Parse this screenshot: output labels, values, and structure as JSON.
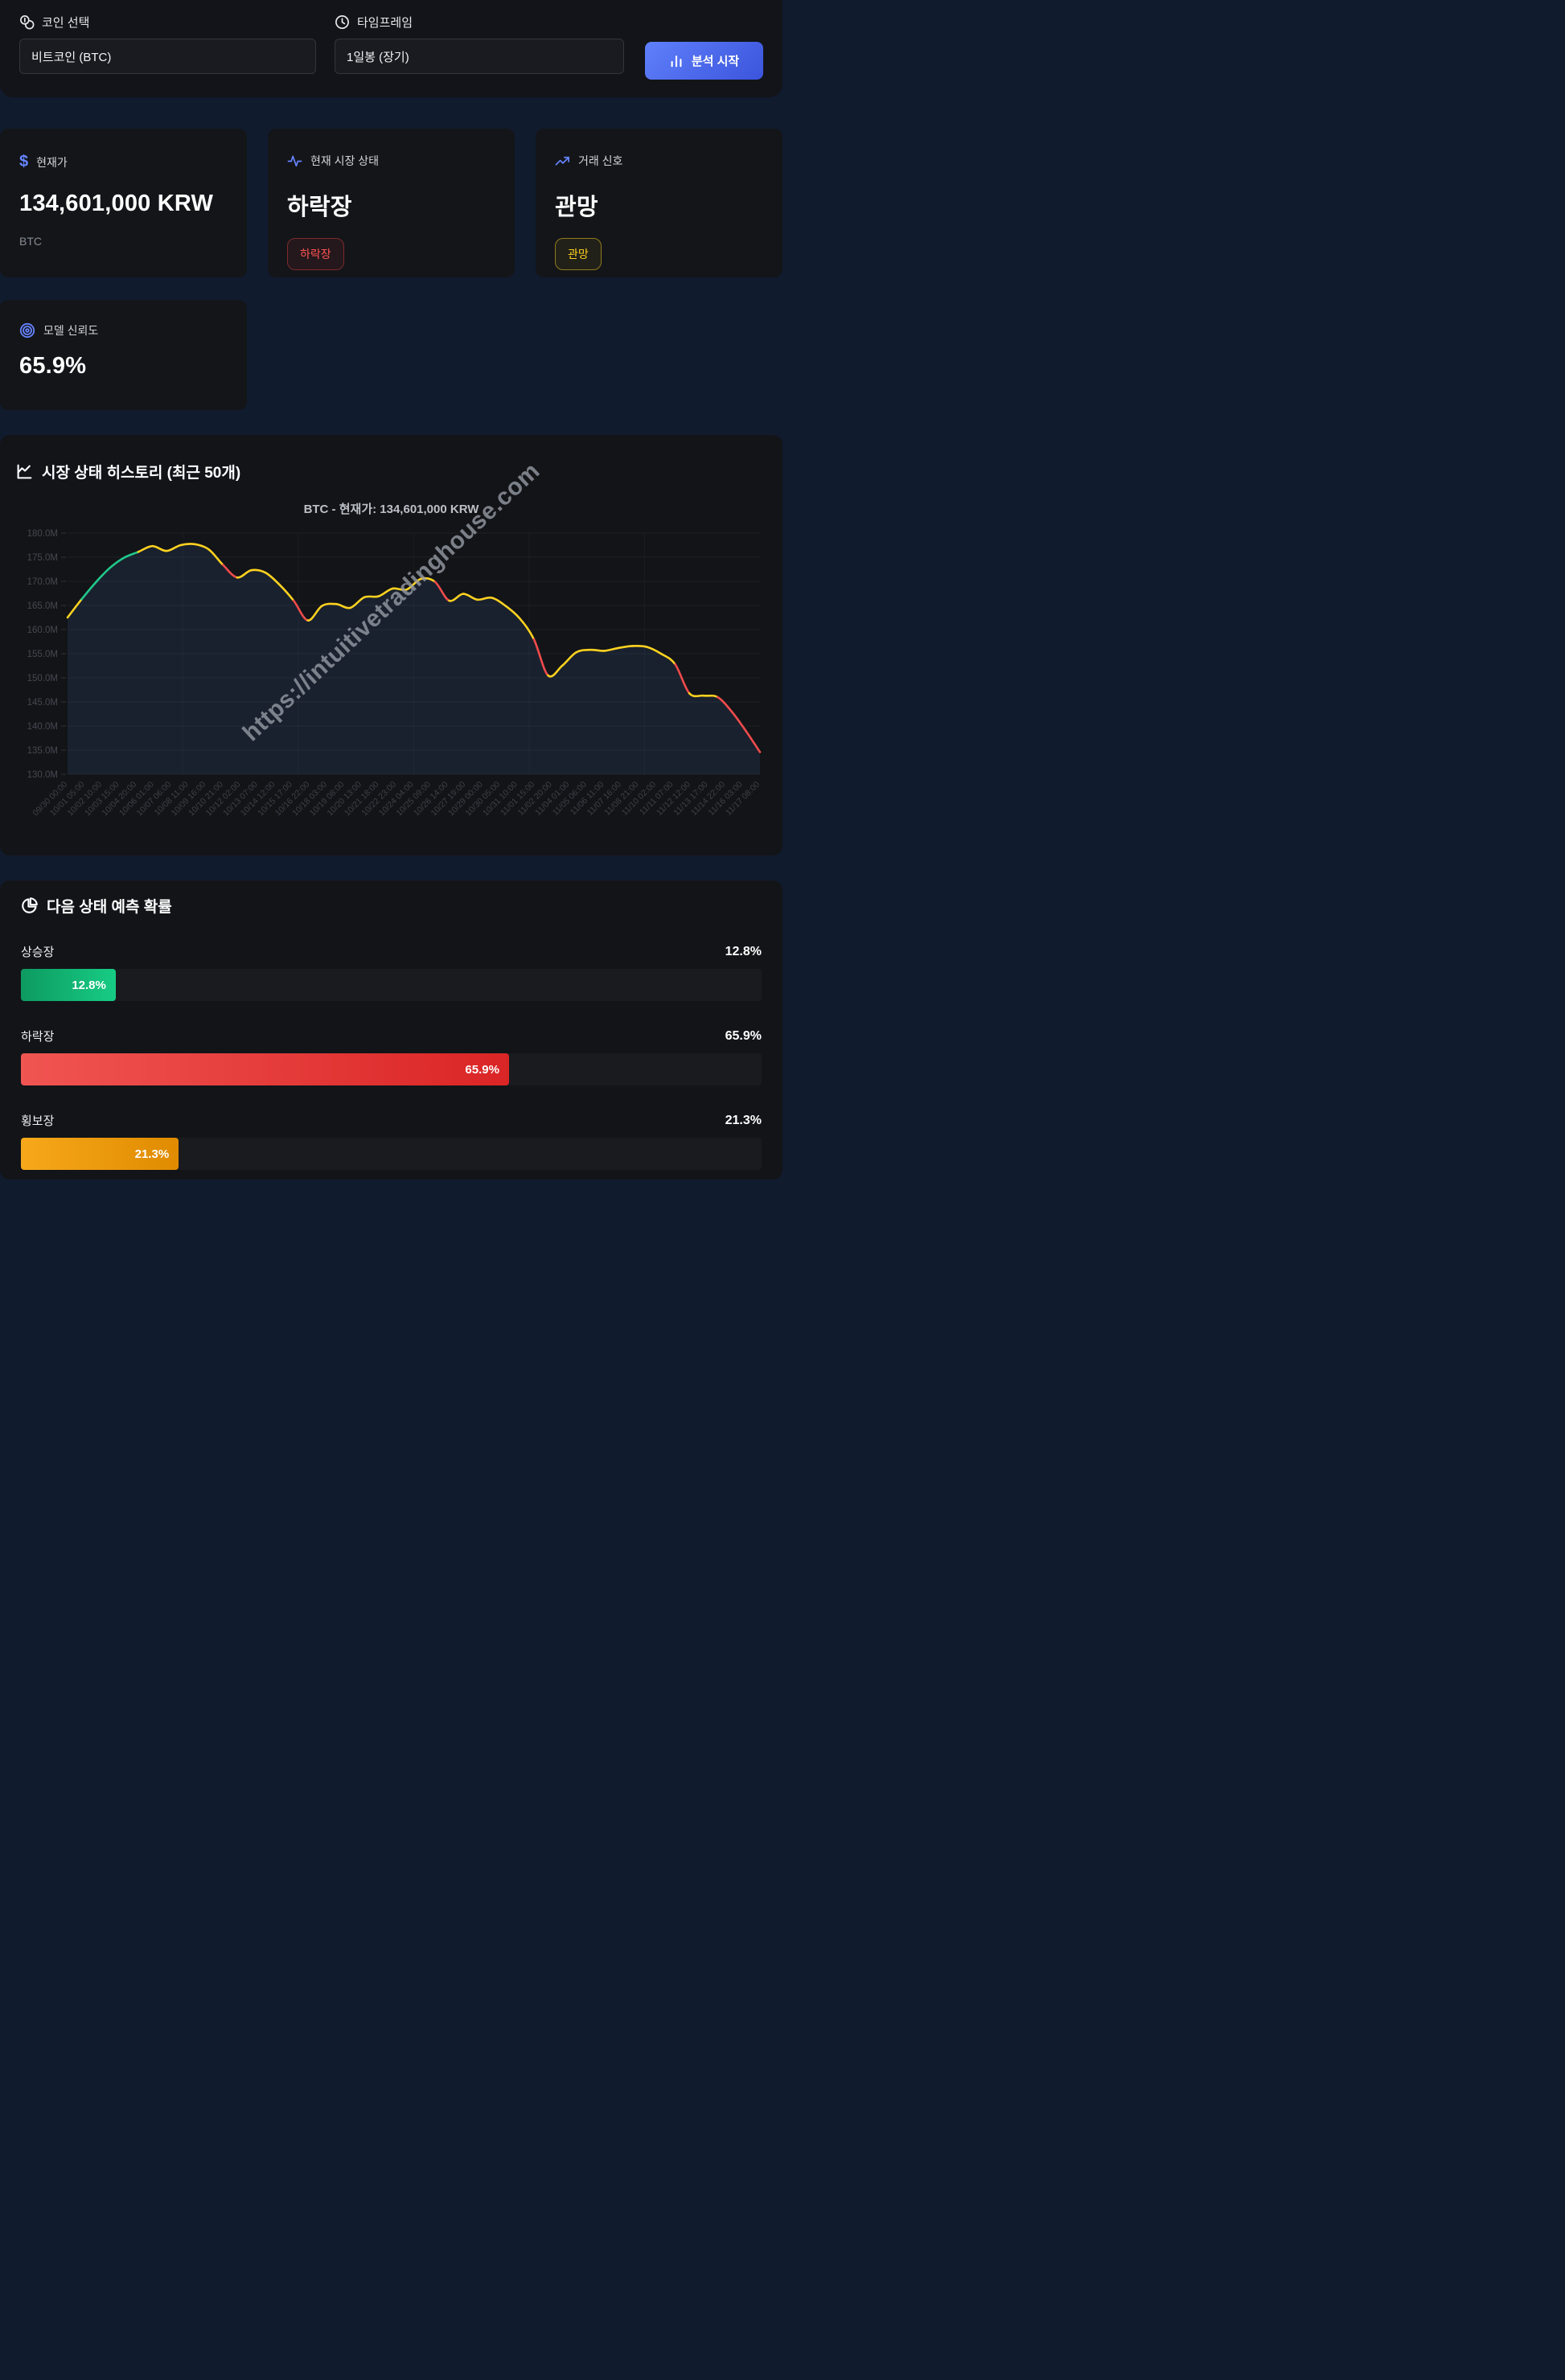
{
  "header": {
    "coin_label": "코인 선택",
    "coin_value": "비트코인 (BTC)",
    "timeframe_label": "타임프레임",
    "timeframe_value": "1일봉 (장기)",
    "analyze_button": "분석 시작"
  },
  "cards": {
    "price": {
      "label": "현재가",
      "value": "134,601,000 KRW",
      "sub": "BTC"
    },
    "state": {
      "label": "현재 시장 상태",
      "value": "하락장",
      "badge": "하락장"
    },
    "signal": {
      "label": "거래 신호",
      "value": "관망",
      "badge": "관망"
    },
    "confidence": {
      "label": "모델 신뢰도",
      "value": "65.9%"
    }
  },
  "icons": {
    "dollar_glyph": "$"
  },
  "colors": {
    "accent_blue": "#6684ff",
    "bull_green": "#21c98b",
    "bear_red": "#f14b4b",
    "sideways_yellow": "#ffd21f",
    "watch_orange": "#f59e0b",
    "button_gradient_start": "#5f80fb",
    "button_gradient_end": "#3b54dc"
  },
  "history_section": {
    "title": "시장 상태 히스토리 (최근 50개)"
  },
  "chart_data": {
    "type": "line",
    "title": "BTC - 현재가: 134,601,000 KRW",
    "watermark": "https://intuitivetradinghouse.com",
    "ylim": [
      130,
      180
    ],
    "y_ticks": [
      "180.0M",
      "175.0M",
      "170.0M",
      "165.0M",
      "160.0M",
      "155.0M",
      "150.0M",
      "145.0M",
      "140.0M",
      "135.0M",
      "130.0M"
    ],
    "x_ticks": [
      "09/30 00:00",
      "10/01 05:00",
      "10/02 10:00",
      "10/03 15:00",
      "10/04 20:00",
      "10/06 01:00",
      "10/07 06:00",
      "10/08 11:00",
      "10/09 16:00",
      "10/10 21:00",
      "10/12 02:00",
      "10/13 07:00",
      "10/14 12:00",
      "10/15 17:00",
      "10/16 22:00",
      "10/18 03:00",
      "10/19 08:00",
      "10/20 13:00",
      "10/21 18:00",
      "10/22 23:00",
      "10/24 04:00",
      "10/25 09:00",
      "10/26 14:00",
      "10/27 19:00",
      "10/29 00:00",
      "10/30 05:00",
      "10/31 10:00",
      "11/01 15:00",
      "11/02 20:00",
      "11/04 01:00",
      "11/05 06:00",
      "11/06 11:00",
      "11/07 16:00",
      "11/08 21:00",
      "11/10 02:00",
      "11/11 07:00",
      "11/12 12:00",
      "11/13 17:00",
      "11/14 22:00",
      "11/16 03:00",
      "11/17 08:00"
    ],
    "values": [
      162.5,
      166.3,
      169.8,
      172.8,
      174.9,
      176.1,
      177.3,
      176.3,
      177.5,
      177.7,
      176.6,
      173.4,
      170.8,
      172.3,
      171.8,
      169.3,
      166.0,
      161.9,
      164.9,
      165.3,
      164.5,
      166.7,
      166.9,
      168.5,
      168.3,
      170.5,
      169.9,
      166.0,
      167.4,
      166.2,
      166.6,
      164.9,
      162.3,
      158.0,
      150.5,
      152.5,
      155.3,
      155.8,
      155.6,
      156.2,
      156.6,
      156.4,
      155.0,
      152.8,
      146.8,
      146.3,
      146.0,
      143.0,
      139.0,
      134.6
    ],
    "segment_colors": [
      "Y",
      "G",
      "G",
      "G",
      "G",
      "Y",
      "Y",
      "Y",
      "Y",
      "Y",
      "Y",
      "R",
      "Y",
      "Y",
      "Y",
      "Y",
      "R",
      "Y",
      "Y",
      "Y",
      "Y",
      "Y",
      "Y",
      "Y",
      "Y",
      "Y",
      "R",
      "Y",
      "Y",
      "Y",
      "Y",
      "Y",
      "Y",
      "R",
      "Y",
      "Y",
      "Y",
      "Y",
      "Y",
      "Y",
      "Y",
      "Y",
      "Y",
      "R",
      "Y",
      "Y",
      "R",
      "R",
      "R"
    ],
    "colors": {
      "G": "#21c98b",
      "Y": "#ffd21f",
      "R": "#f14b4b"
    },
    "area_fill": "rgba(76,122,204,0.13)",
    "grid": true,
    "legend": "none"
  },
  "prediction": {
    "title": "다음 상태 예측 확률",
    "rows": [
      {
        "label": "상승장",
        "value": "12.8%",
        "pct": 12.8
      },
      {
        "label": "하락장",
        "value": "65.9%",
        "pct": 65.9
      },
      {
        "label": "횡보장",
        "value": "21.3%",
        "pct": 21.3
      }
    ]
  }
}
